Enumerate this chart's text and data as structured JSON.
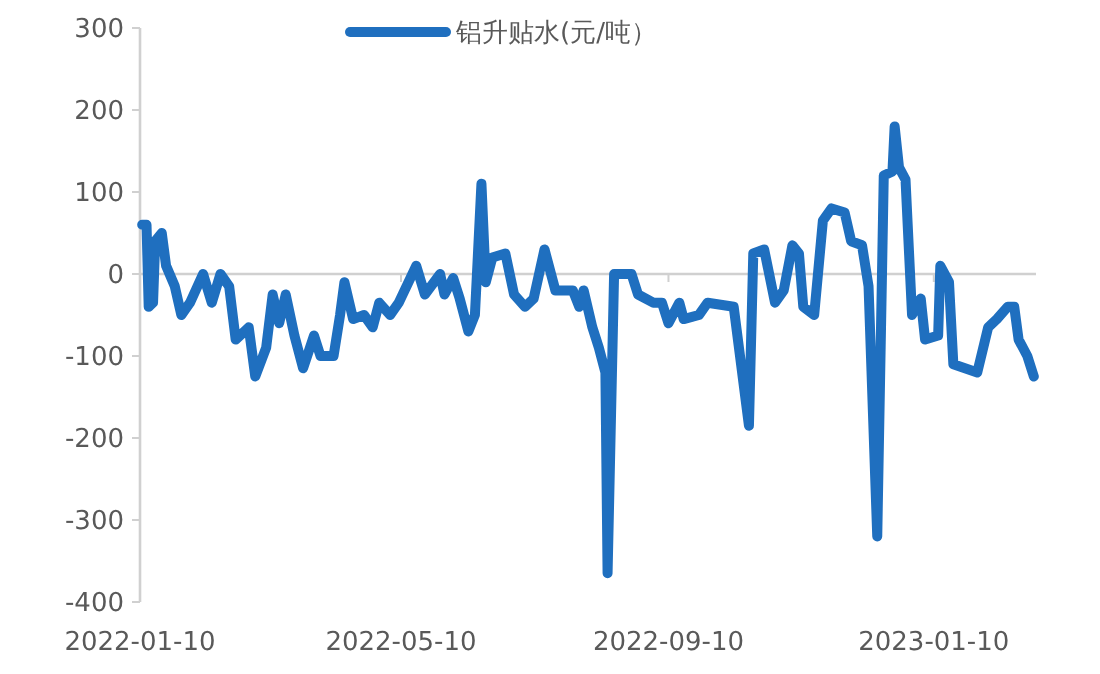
{
  "chart_data": {
    "type": "line",
    "legend": "top",
    "marker": "none",
    "line_style": "solid",
    "x": [
      "2022-01-11",
      "2022-01-13",
      "2022-01-14",
      "2022-01-16",
      "2022-01-17",
      "2022-01-20",
      "2022-01-22",
      "2022-01-26",
      "2022-01-29",
      "2022-02-02",
      "2022-02-08",
      "2022-02-12",
      "2022-02-16",
      "2022-02-20",
      "2022-02-23",
      "2022-03-01",
      "2022-03-04",
      "2022-03-09",
      "2022-03-12",
      "2022-03-15",
      "2022-03-18",
      "2022-03-22",
      "2022-03-26",
      "2022-03-31",
      "2022-04-03",
      "2022-04-09",
      "2022-04-12",
      "2022-04-14",
      "2022-04-18",
      "2022-04-23",
      "2022-04-27",
      "2022-04-30",
      "2022-05-05",
      "2022-05-09",
      "2022-05-17",
      "2022-05-21",
      "2022-05-28",
      "2022-05-30",
      "2022-06-03",
      "2022-06-06",
      "2022-06-10",
      "2022-06-13",
      "2022-06-16",
      "2022-06-18",
      "2022-06-21",
      "2022-06-27",
      "2022-07-01",
      "2022-07-06",
      "2022-07-10",
      "2022-07-15",
      "2022-07-20",
      "2022-07-28",
      "2022-07-31",
      "2022-08-02",
      "2022-08-06",
      "2022-08-09",
      "2022-08-12",
      "2022-08-13",
      "2022-08-16",
      "2022-08-24",
      "2022-08-27",
      "2022-09-03",
      "2022-09-07",
      "2022-09-10",
      "2022-09-15",
      "2022-09-17",
      "2022-09-24",
      "2022-09-28",
      "2022-10-10",
      "2022-10-17",
      "2022-10-19",
      "2022-10-24",
      "2022-10-29",
      "2022-11-02",
      "2022-11-06",
      "2022-11-09",
      "2022-11-11",
      "2022-11-16",
      "2022-11-20",
      "2022-11-24",
      "2022-11-30",
      "2022-12-03",
      "2022-12-08",
      "2022-12-11",
      "2022-12-15",
      "2022-12-18",
      "2022-12-22",
      "2022-12-23",
      "2022-12-25",
      "2022-12-28",
      "2022-12-31",
      "2023-01-04",
      "2023-01-06",
      "2023-01-12",
      "2023-01-13",
      "2023-01-17",
      "2023-01-19",
      "2023-01-30",
      "2023-02-04",
      "2023-02-08",
      "2023-02-13",
      "2023-02-16",
      "2023-02-18",
      "2023-02-22",
      "2023-02-25"
    ],
    "series": [
      {
        "name": "铝升贴水(元/吨）",
        "color": "#1f6fbf",
        "values": [
          60,
          60,
          -40,
          -35,
          40,
          50,
          10,
          -15,
          -50,
          -35,
          0,
          -35,
          0,
          -15,
          -80,
          -65,
          -125,
          -90,
          -25,
          -60,
          -25,
          -75,
          -115,
          -75,
          -100,
          -100,
          -50,
          -10,
          -55,
          -50,
          -65,
          -35,
          -50,
          -35,
          10,
          -25,
          0,
          -25,
          -5,
          -30,
          -70,
          -50,
          110,
          -10,
          20,
          25,
          -25,
          -40,
          -30,
          30,
          -20,
          -20,
          -40,
          -20,
          -65,
          -90,
          -120,
          -365,
          0,
          0,
          -25,
          -35,
          -35,
          -60,
          -35,
          -55,
          -50,
          -35,
          -40,
          -185,
          25,
          30,
          -35,
          -20,
          35,
          25,
          -40,
          -50,
          65,
          80,
          75,
          40,
          35,
          -15,
          -320,
          120,
          125,
          180,
          130,
          115,
          -50,
          -30,
          -80,
          -75,
          10,
          -10,
          -110,
          -120,
          -65,
          -55,
          -40,
          -40,
          -80,
          -100,
          -125
        ]
      }
    ],
    "xlim": [
      "2022-01-10",
      "2023-02-26"
    ],
    "xticks": [
      "2022-01-10",
      "2022-05-10",
      "2022-09-10",
      "2023-01-10"
    ],
    "ylim": [
      -400,
      300
    ],
    "yticks": [
      -400,
      -300,
      -200,
      -100,
      0,
      100,
      200,
      300
    ]
  }
}
